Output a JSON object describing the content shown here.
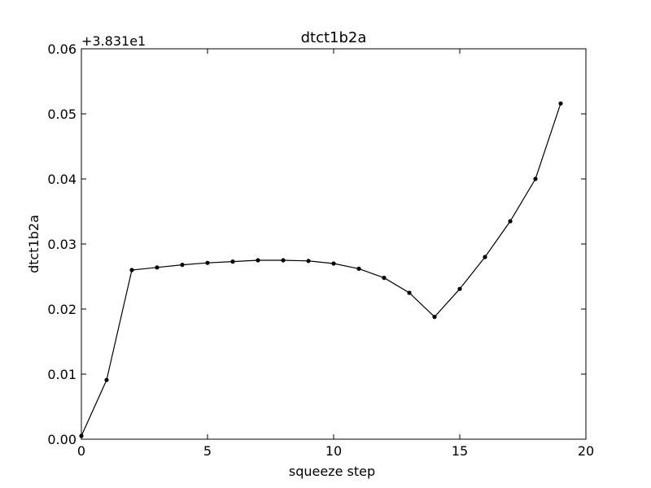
{
  "chart_data": {
    "type": "line",
    "title": "dtct1b2a",
    "xlabel": "squeeze step",
    "ylabel": "dtct1b2a",
    "y_offset_label": "+3.831e1",
    "xlim": [
      0,
      20
    ],
    "ylim": [
      0.0,
      0.06
    ],
    "x_ticks": [
      0,
      5,
      10,
      15,
      20
    ],
    "x_tick_labels": [
      "0",
      "5",
      "10",
      "15",
      "20"
    ],
    "y_ticks": [
      0.0,
      0.01,
      0.02,
      0.03,
      0.04,
      0.05,
      0.06
    ],
    "y_tick_labels": [
      "0.00",
      "0.01",
      "0.02",
      "0.03",
      "0.04",
      "0.05",
      "0.06"
    ],
    "grid": false,
    "legend": "none",
    "series": [
      {
        "color": "#000000",
        "marker": "dot",
        "x": [
          0,
          1,
          2,
          3,
          4,
          5,
          6,
          7,
          8,
          9,
          10,
          11,
          12,
          13,
          14,
          15,
          16,
          17,
          18,
          19
        ],
        "y": [
          0.0005,
          0.0091,
          0.026,
          0.0264,
          0.0268,
          0.0271,
          0.0273,
          0.0275,
          0.0275,
          0.0274,
          0.027,
          0.0262,
          0.0248,
          0.0225,
          0.0188,
          0.0231,
          0.028,
          0.0335,
          0.04,
          0.0516
        ]
      }
    ]
  }
}
